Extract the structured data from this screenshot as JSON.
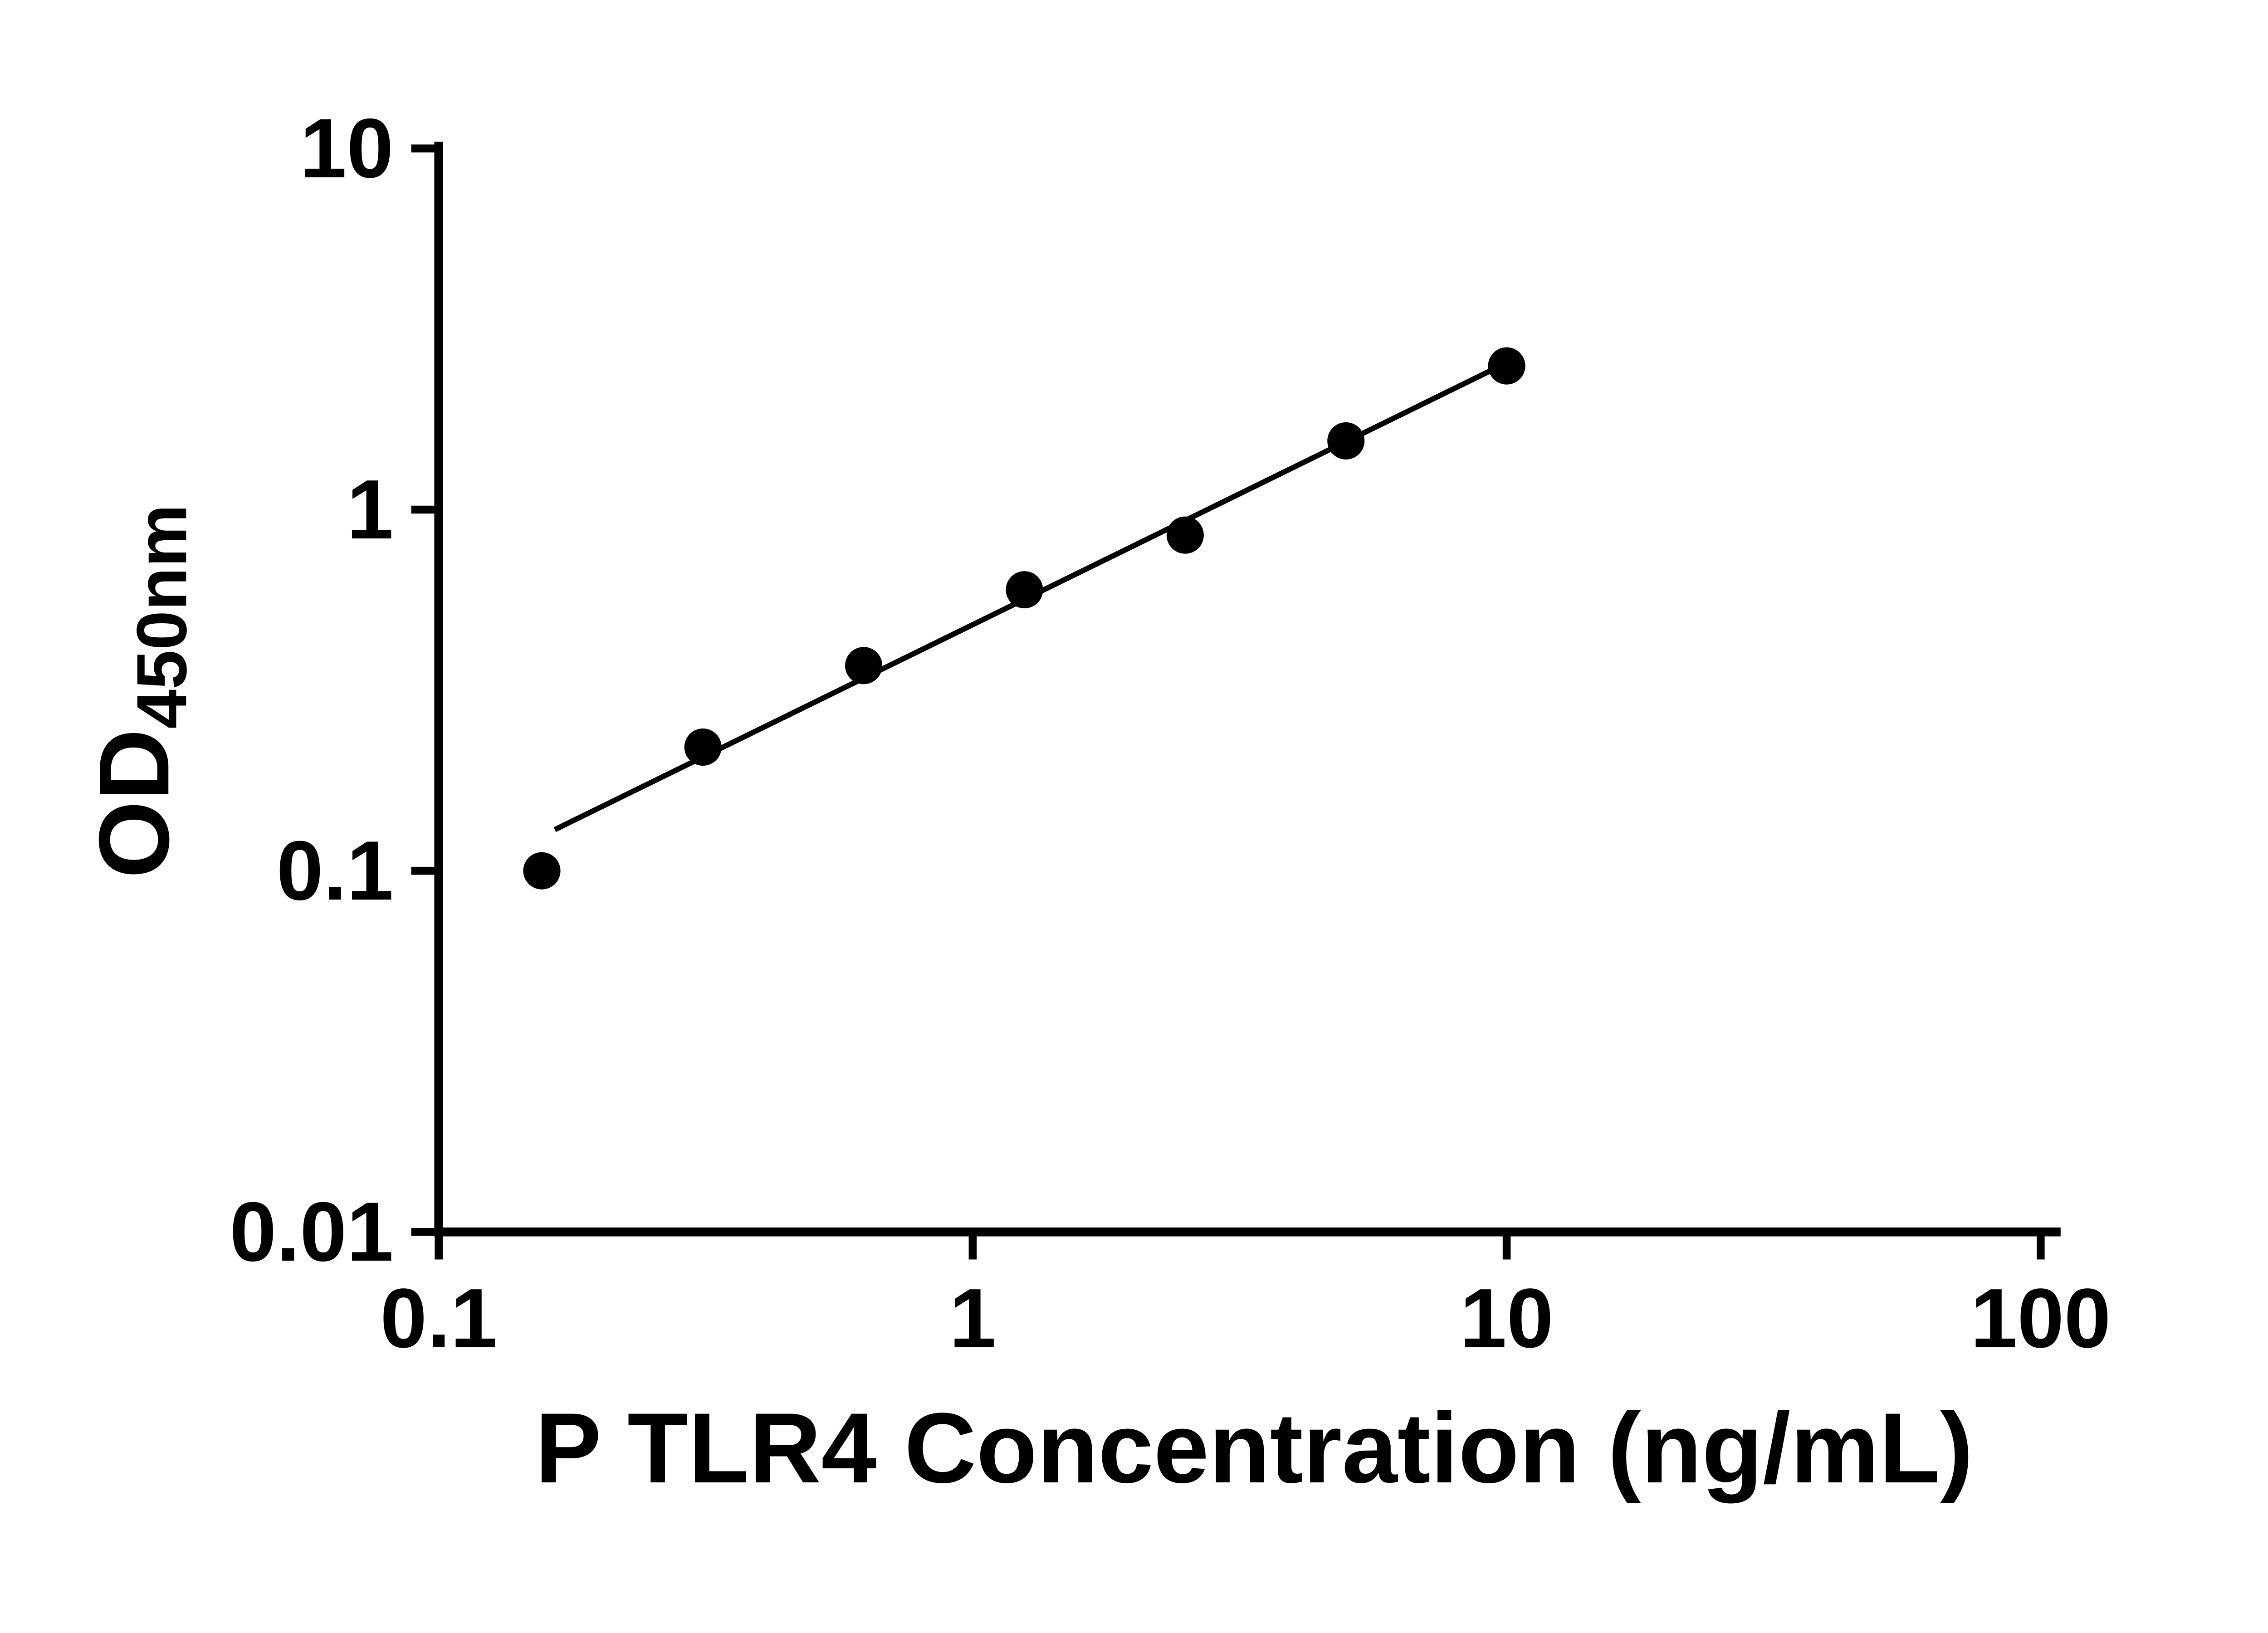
{
  "page": {
    "background": "#ffffff",
    "description_label": "ELISA standard curve"
  },
  "chart_data": {
    "type": "scatter",
    "has_trend_line": true,
    "title": "",
    "xlabel": "P TLR4 Concentration (ng/mL)",
    "ylabel_main": "OD",
    "ylabel_sub": "450nm",
    "x_scale": "log",
    "y_scale": "log",
    "xlim": [
      0.1,
      100
    ],
    "ylim": [
      0.01,
      10
    ],
    "x_ticks": [
      0.1,
      1,
      10,
      100
    ],
    "x_tick_labels": [
      "0.1",
      "1",
      "10",
      "100"
    ],
    "y_ticks": [
      0.01,
      0.1,
      1,
      10
    ],
    "y_tick_labels": [
      "0.01",
      "0.1",
      "1",
      "10"
    ],
    "grid": false,
    "legend": null,
    "points": [
      {
        "x": 0.156,
        "y": 0.1
      },
      {
        "x": 0.3125,
        "y": 0.22
      },
      {
        "x": 0.625,
        "y": 0.37
      },
      {
        "x": 1.25,
        "y": 0.6
      },
      {
        "x": 2.5,
        "y": 0.85
      },
      {
        "x": 5,
        "y": 1.55
      },
      {
        "x": 10,
        "y": 2.5
      }
    ],
    "trend_line": {
      "x1": 0.165,
      "y1": 0.13,
      "x2": 10,
      "y2": 2.55
    },
    "marker_color": "#000000",
    "marker_radius": 42,
    "line_color": "#000000",
    "axis_color": "#000000",
    "background": "#ffffff"
  }
}
